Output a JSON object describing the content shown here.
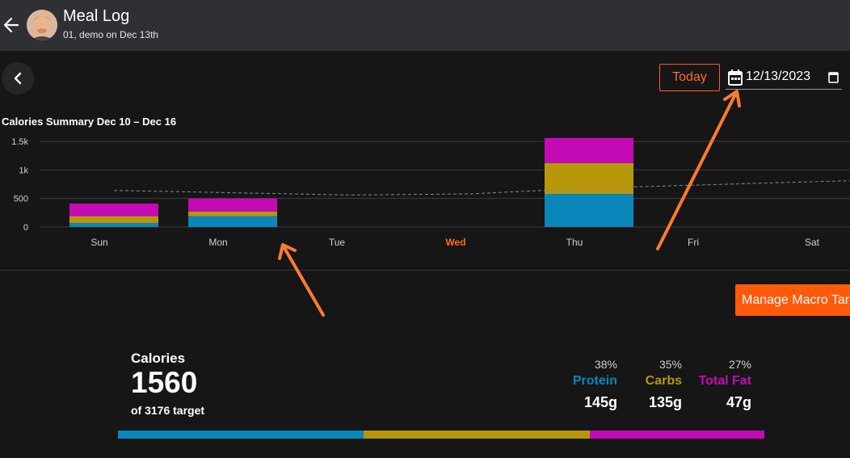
{
  "appbar": {
    "title": "Meal Log",
    "subtitle": "01, demo on Dec 13th"
  },
  "toolbar": {
    "today_label": "Today",
    "date_value": "12/13/2023"
  },
  "chart_data": {
    "type": "bar",
    "title": "Calories Summary Dec 10 – Dec 16",
    "categories": [
      "Sun",
      "Mon",
      "Tue",
      "Wed",
      "Thu",
      "Fri",
      "Sat"
    ],
    "highlight_category": "Wed",
    "series": [
      {
        "name": "Protein",
        "color": "#0a86b8",
        "values": [
          70,
          190,
          0,
          0,
          580,
          0,
          0
        ]
      },
      {
        "name": "Carbs",
        "color": "#b8960a",
        "values": [
          120,
          80,
          0,
          0,
          540,
          0,
          0
        ]
      },
      {
        "name": "Total Fat",
        "color": "#c40ab4",
        "values": [
          220,
          230,
          0,
          0,
          440,
          0,
          0
        ]
      }
    ],
    "target_line": [
      640,
      600,
      560,
      580,
      680,
      740,
      800
    ],
    "yticks": [
      0,
      500,
      1000,
      1500
    ],
    "ytick_labels": [
      "0",
      "500",
      "1k",
      "1.5k"
    ],
    "ylim": [
      0,
      1500
    ],
    "grid": true
  },
  "macro_button": {
    "label": "Manage Macro Targets"
  },
  "summary": {
    "calories_label": "Calories",
    "calories_value": "1560",
    "target_text": "of 3176 target",
    "macros": [
      {
        "pct": "38%",
        "name": "Protein",
        "grams": "145g",
        "color": "#0a86b8",
        "fraction": 0.38
      },
      {
        "pct": "35%",
        "name": "Carbs",
        "grams": "135g",
        "color": "#b8960a",
        "fraction": 0.35
      },
      {
        "pct": "27%",
        "name": "Total Fat",
        "grams": "47g",
        "color": "#c40ab4",
        "fraction": 0.27
      }
    ]
  },
  "colors": {
    "accent": "#ff5a0a",
    "protein": "#0a86b8",
    "carbs": "#b8960a",
    "fat": "#c40ab4",
    "annotation_arrow": "#ff7a2e"
  }
}
